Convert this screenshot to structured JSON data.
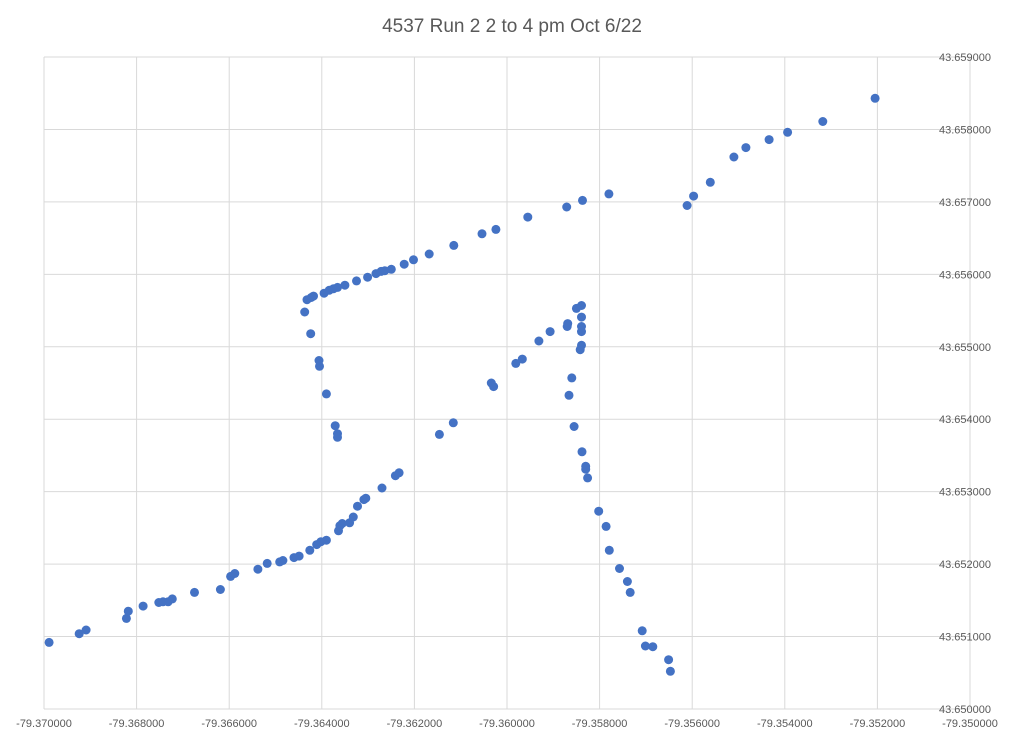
{
  "chart_data": {
    "type": "scatter",
    "title": "4537 Run 2 2 to 4 pm Oct 6/22",
    "xlabel": "",
    "ylabel": "",
    "xlim": [
      -79.37,
      -79.35
    ],
    "ylim": [
      43.65,
      43.659
    ],
    "x_ticks": [
      "-79.370000",
      "-79.368000",
      "-79.366000",
      "-79.364000",
      "-79.362000",
      "-79.360000",
      "-79.358000",
      "-79.356000",
      "-79.354000",
      "-79.352000",
      "-79.350000"
    ],
    "y_ticks": [
      "43.650000",
      "43.651000",
      "43.652000",
      "43.653000",
      "43.654000",
      "43.655000",
      "43.656000",
      "43.657000",
      "43.658000",
      "43.659000"
    ],
    "y_axis_side": "right",
    "grid": true,
    "legend": false,
    "series": [
      {
        "color": "#4472c4",
        "points": [
          [
            -79.36989,
            43.65092
          ],
          [
            -79.36924,
            43.65104
          ],
          [
            -79.36909,
            43.65109
          ],
          [
            -79.36822,
            43.65125
          ],
          [
            -79.36818,
            43.65135
          ],
          [
            -79.36786,
            43.65142
          ],
          [
            -79.36752,
            43.65147
          ],
          [
            -79.36743,
            43.65148
          ],
          [
            -79.36732,
            43.65148
          ],
          [
            -79.36723,
            43.65152
          ],
          [
            -79.36675,
            43.65161
          ],
          [
            -79.36619,
            43.65165
          ],
          [
            -79.36597,
            43.65183
          ],
          [
            -79.36588,
            43.65187
          ],
          [
            -79.36538,
            43.65193
          ],
          [
            -79.36518,
            43.65201
          ],
          [
            -79.36491,
            43.65203
          ],
          [
            -79.36484,
            43.65205
          ],
          [
            -79.3646,
            43.65209
          ],
          [
            -79.36449,
            43.65211
          ],
          [
            -79.36426,
            43.65219
          ],
          [
            -79.36411,
            43.65227
          ],
          [
            -79.36402,
            43.65231
          ],
          [
            -79.3639,
            43.65233
          ],
          [
            -79.36364,
            43.65246
          ],
          [
            -79.36361,
            43.65253
          ],
          [
            -79.36356,
            43.65256
          ],
          [
            -79.3634,
            43.65257
          ],
          [
            -79.36332,
            43.65265
          ],
          [
            -79.36323,
            43.6528
          ],
          [
            -79.36309,
            43.65289
          ],
          [
            -79.36305,
            43.65291
          ],
          [
            -79.3627,
            43.65305
          ],
          [
            -79.36241,
            43.65322
          ],
          [
            -79.36233,
            43.65326
          ],
          [
            -79.36366,
            43.6538
          ],
          [
            -79.36366,
            43.65375
          ],
          [
            -79.36371,
            43.65391
          ],
          [
            -79.3639,
            43.65435
          ],
          [
            -79.36405,
            43.65473
          ],
          [
            -79.36406,
            43.65481
          ],
          [
            -79.36424,
            43.65518
          ],
          [
            -79.36437,
            43.65548
          ],
          [
            -79.36432,
            43.65565
          ],
          [
            -79.36423,
            43.65568
          ],
          [
            -79.36418,
            43.6557
          ],
          [
            -79.36395,
            43.65574
          ],
          [
            -79.36384,
            43.65578
          ],
          [
            -79.36375,
            43.6558
          ],
          [
            -79.36366,
            43.65582
          ],
          [
            -79.3635,
            43.65585
          ],
          [
            -79.36325,
            43.65591
          ],
          [
            -79.36301,
            43.65596
          ],
          [
            -79.36283,
            43.65601
          ],
          [
            -79.36272,
            43.65604
          ],
          [
            -79.36264,
            43.65605
          ],
          [
            -79.3625,
            43.65607
          ],
          [
            -79.36222,
            43.65614
          ],
          [
            -79.36202,
            43.6562
          ],
          [
            -79.36168,
            43.65628
          ],
          [
            -79.36115,
            43.6564
          ],
          [
            -79.36054,
            43.65656
          ],
          [
            -79.36024,
            43.65662
          ],
          [
            -79.35955,
            43.65679
          ],
          [
            -79.35871,
            43.65693
          ],
          [
            -79.35837,
            43.65702
          ],
          [
            -79.3578,
            43.65711
          ],
          [
            -79.35611,
            43.65695
          ],
          [
            -79.35597,
            43.65708
          ],
          [
            -79.35561,
            43.65727
          ],
          [
            -79.3551,
            43.65762
          ],
          [
            -79.35484,
            43.65775
          ],
          [
            -79.35434,
            43.65786
          ],
          [
            -79.35394,
            43.65796
          ],
          [
            -79.35318,
            43.65811
          ],
          [
            -79.35205,
            43.65843
          ],
          [
            -79.36146,
            43.65379
          ],
          [
            -79.36116,
            43.65395
          ],
          [
            -79.36034,
            43.6545
          ],
          [
            -79.36029,
            43.65445
          ],
          [
            -79.35981,
            43.65477
          ],
          [
            -79.35967,
            43.65483
          ],
          [
            -79.35931,
            43.65508
          ],
          [
            -79.35907,
            43.65521
          ],
          [
            -79.3587,
            43.65528
          ],
          [
            -79.35869,
            43.65532
          ],
          [
            -79.3585,
            43.65553
          ],
          [
            -79.35839,
            43.65557
          ],
          [
            -79.35839,
            43.65541
          ],
          [
            -79.35839,
            43.65528
          ],
          [
            -79.35839,
            43.65521
          ],
          [
            -79.35839,
            43.65502
          ],
          [
            -79.35842,
            43.65496
          ],
          [
            -79.3586,
            43.65457
          ],
          [
            -79.35866,
            43.65433
          ],
          [
            -79.35855,
            43.6539
          ],
          [
            -79.35838,
            43.65355
          ],
          [
            -79.3583,
            43.65335
          ],
          [
            -79.3583,
            43.65331
          ],
          [
            -79.35826,
            43.65319
          ],
          [
            -79.35802,
            43.65273
          ],
          [
            -79.35786,
            43.65252
          ],
          [
            -79.35779,
            43.65219
          ],
          [
            -79.35757,
            43.65194
          ],
          [
            -79.3574,
            43.65176
          ],
          [
            -79.35734,
            43.65161
          ],
          [
            -79.35708,
            43.65108
          ],
          [
            -79.35701,
            43.65087
          ],
          [
            -79.35685,
            43.65086
          ],
          [
            -79.35651,
            43.65068
          ],
          [
            -79.35647,
            43.65052
          ]
        ]
      }
    ]
  }
}
